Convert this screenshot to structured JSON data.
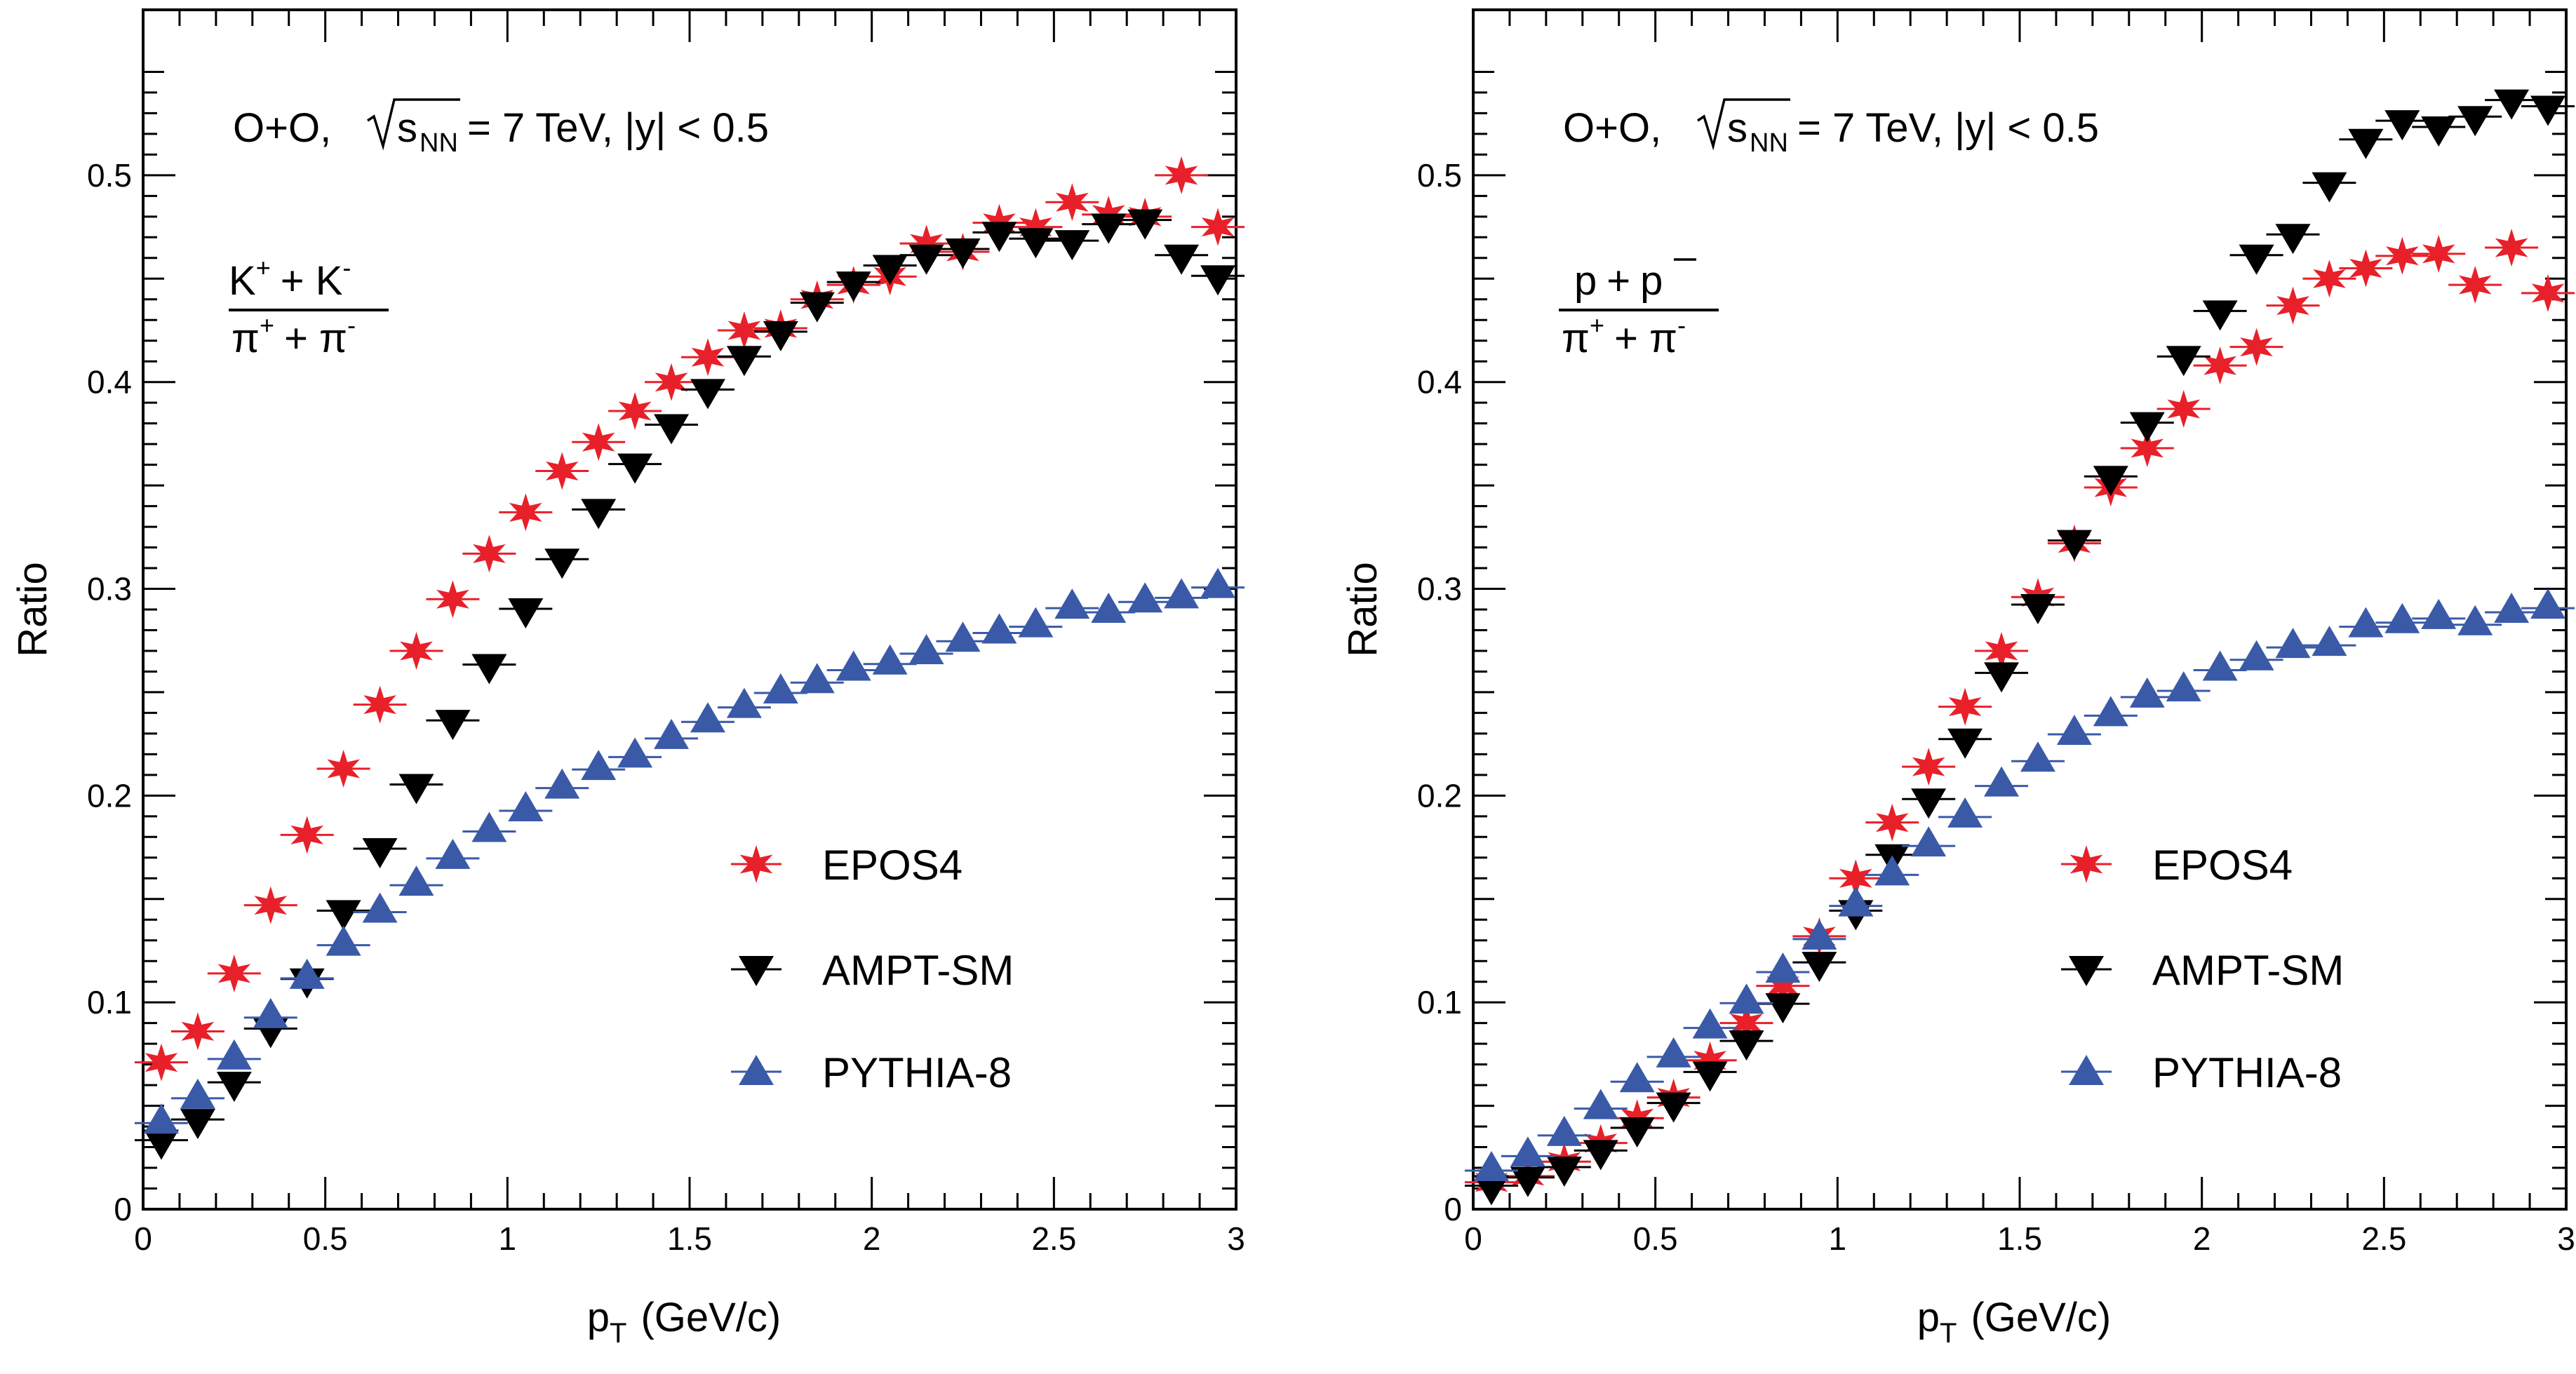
{
  "colors": {
    "epos": "#e8202a",
    "ampt": "#000000",
    "pythia": "#3a5aa8",
    "frame": "#000000"
  },
  "chart_data": [
    {
      "type": "scatter",
      "annotation": {
        "system": "O+O,",
        "sqrt_s": "s",
        "sqrt_sub": "NN",
        "energy": "= 7 TeV, |y| < 0.5"
      },
      "ratio_label": {
        "num_a": "K",
        "num_a_sup": "+",
        "num_op": "+ K",
        "num_b_sup": "-",
        "den_a": "π",
        "den_a_sup": "+",
        "den_op": "+ π",
        "den_b_sup": "-"
      },
      "xlabel": "p",
      "xlabel_sub": "T",
      "xlabel_unit": "(GeV/c)",
      "ylabel": "Ratio",
      "xlim": [
        0,
        3
      ],
      "ylim": [
        0,
        0.58
      ],
      "xticks": [
        0,
        0.5,
        1,
        1.5,
        2,
        2.5,
        3
      ],
      "xtick_labels": [
        "0",
        "0.5",
        "1",
        "1.5",
        "2",
        "2.5",
        "3"
      ],
      "yticks": [
        0,
        0.1,
        0.2,
        0.3,
        0.4,
        0.5
      ],
      "ytick_labels": [
        "0",
        "0.1",
        "0.2",
        "0.3",
        "0.4",
        "0.5"
      ],
      "x": [
        0.05,
        0.15,
        0.25,
        0.35,
        0.45,
        0.55,
        0.65,
        0.75,
        0.85,
        0.95,
        1.05,
        1.15,
        1.25,
        1.35,
        1.45,
        1.55,
        1.65,
        1.75,
        1.85,
        1.95,
        2.05,
        2.15,
        2.25,
        2.35,
        2.45,
        2.55,
        2.65,
        2.75,
        2.85,
        2.95
      ],
      "series": [
        {
          "name": "EPOS4",
          "marker": "star",
          "values": [
            0.071,
            0.086,
            0.114,
            0.147,
            0.181,
            0.213,
            0.244,
            0.27,
            0.295,
            0.317,
            0.337,
            0.357,
            0.371,
            0.386,
            0.4,
            0.412,
            0.425,
            0.426,
            0.44,
            0.447,
            0.451,
            0.467,
            0.463,
            0.477,
            0.475,
            0.487,
            0.481,
            0.48,
            0.5,
            0.475
          ]
        },
        {
          "name": "AMPT-SM",
          "marker": "triangle-down",
          "values": [
            0.032,
            0.042,
            0.06,
            0.086,
            0.11,
            0.143,
            0.173,
            0.204,
            0.235,
            0.262,
            0.289,
            0.313,
            0.337,
            0.359,
            0.378,
            0.395,
            0.411,
            0.423,
            0.437,
            0.447,
            0.455,
            0.46,
            0.463,
            0.471,
            0.468,
            0.467,
            0.475,
            0.477,
            0.46,
            0.45
          ]
        },
        {
          "name": "PYTHIA-8",
          "marker": "triangle-up",
          "values": [
            0.043,
            0.055,
            0.074,
            0.094,
            0.113,
            0.129,
            0.145,
            0.158,
            0.171,
            0.184,
            0.194,
            0.205,
            0.214,
            0.22,
            0.229,
            0.237,
            0.244,
            0.251,
            0.256,
            0.262,
            0.265,
            0.27,
            0.276,
            0.28,
            0.283,
            0.292,
            0.29,
            0.295,
            0.297,
            0.302
          ]
        }
      ]
    },
    {
      "type": "scatter",
      "annotation": {
        "system": "O+O,",
        "sqrt_s": "s",
        "sqrt_sub": "NN",
        "energy": "= 7 TeV, |y| < 0.5"
      },
      "ratio_label": {
        "num_a": "p",
        "num_a_sup": "",
        "num_op": "+",
        "num_b": "p",
        "num_b_bar": true,
        "den_a": "π",
        "den_a_sup": "+",
        "den_op": "+ π",
        "den_b_sup": "-"
      },
      "xlabel": "p",
      "xlabel_sub": "T",
      "xlabel_unit": "(GeV/c)",
      "ylabel": "Ratio",
      "xlim": [
        0,
        3
      ],
      "ylim": [
        0,
        0.58
      ],
      "xticks": [
        0,
        0.5,
        1,
        1.5,
        2,
        2.5,
        3
      ],
      "xtick_labels": [
        "0",
        "0.5",
        "1",
        "1.5",
        "2",
        "2.5",
        "3"
      ],
      "yticks": [
        0,
        0.1,
        0.2,
        0.3,
        0.4,
        0.5
      ],
      "ytick_labels": [
        "0",
        "0.1",
        "0.2",
        "0.3",
        "0.4",
        "0.5"
      ],
      "x": [
        0.05,
        0.15,
        0.25,
        0.35,
        0.45,
        0.55,
        0.65,
        0.75,
        0.85,
        0.95,
        1.05,
        1.15,
        1.25,
        1.35,
        1.45,
        1.55,
        1.65,
        1.75,
        1.85,
        1.95,
        2.05,
        2.15,
        2.25,
        2.35,
        2.45,
        2.55,
        2.65,
        2.75,
        2.85,
        2.95
      ],
      "series": [
        {
          "name": "EPOS4",
          "marker": "star",
          "values": [
            0.013,
            0.016,
            0.023,
            0.032,
            0.044,
            0.054,
            0.072,
            0.09,
            0.108,
            0.132,
            0.16,
            0.187,
            0.214,
            0.243,
            0.27,
            0.296,
            0.322,
            0.349,
            0.368,
            0.387,
            0.408,
            0.417,
            0.437,
            0.45,
            0.455,
            0.461,
            0.462,
            0.447,
            0.465,
            0.443
          ]
        },
        {
          "name": "AMPT-SM",
          "marker": "triangle-down",
          "values": [
            0.01,
            0.014,
            0.019,
            0.027,
            0.038,
            0.05,
            0.065,
            0.08,
            0.098,
            0.118,
            0.143,
            0.17,
            0.197,
            0.226,
            0.258,
            0.291,
            0.322,
            0.353,
            0.379,
            0.411,
            0.433,
            0.46,
            0.47,
            0.495,
            0.516,
            0.525,
            0.522,
            0.527,
            0.535,
            0.532
          ]
        },
        {
          "name": "PYTHIA-8",
          "marker": "triangle-up",
          "values": [
            0.02,
            0.027,
            0.037,
            0.05,
            0.063,
            0.075,
            0.089,
            0.101,
            0.116,
            0.132,
            0.148,
            0.163,
            0.177,
            0.191,
            0.206,
            0.218,
            0.231,
            0.24,
            0.249,
            0.252,
            0.262,
            0.267,
            0.273,
            0.274,
            0.283,
            0.285,
            0.287,
            0.284,
            0.29,
            0.292
          ]
        }
      ]
    }
  ]
}
